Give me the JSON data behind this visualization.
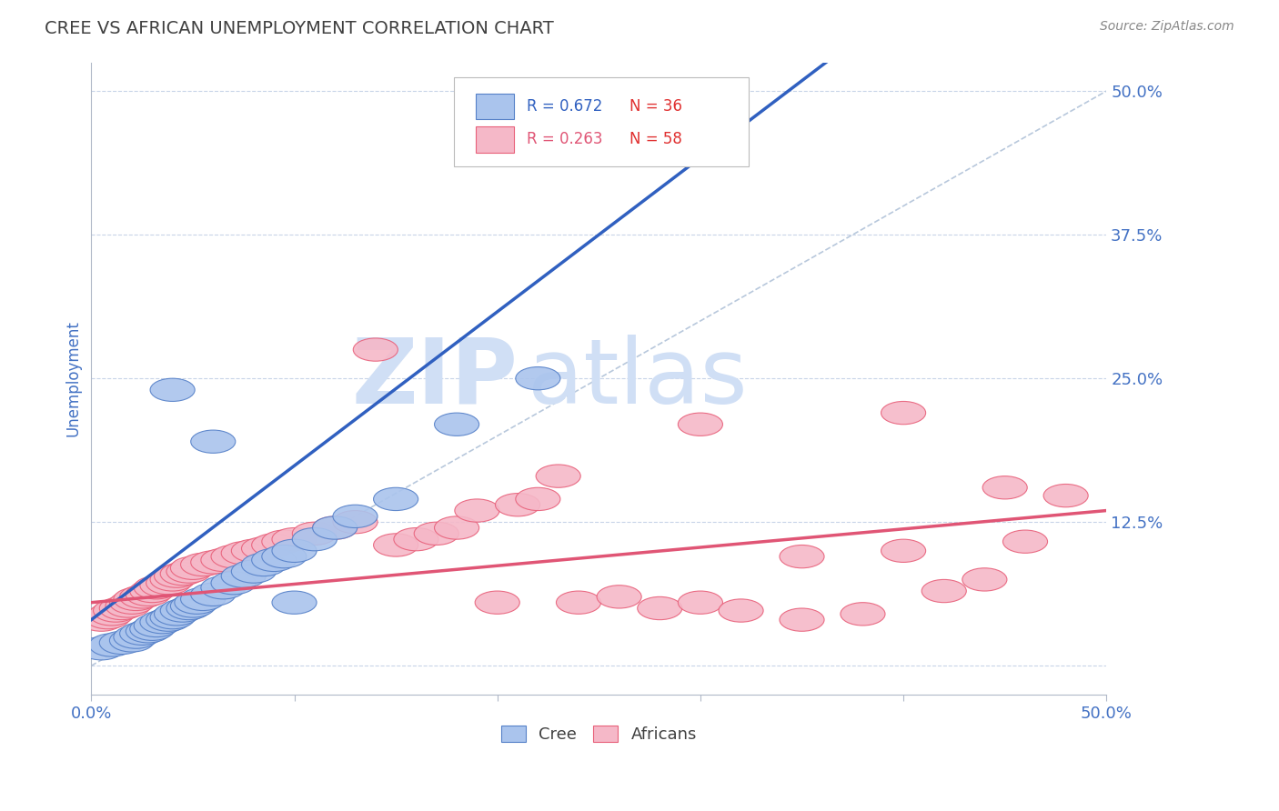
{
  "title": "CREE VS AFRICAN UNEMPLOYMENT CORRELATION CHART",
  "source_text": "Source: ZipAtlas.com",
  "ylabel_ticks": [
    0.0,
    0.125,
    0.25,
    0.375,
    0.5
  ],
  "ylabel_tick_labels": [
    "",
    "12.5%",
    "25.0%",
    "37.5%",
    "50.0%"
  ],
  "ylabel_label": "Unemployment",
  "xmin": 0.0,
  "xmax": 0.5,
  "ymin": -0.025,
  "ymax": 0.525,
  "cree_color": "#aac4ed",
  "african_color": "#f5b8c8",
  "cree_edge_color": "#5580c8",
  "african_edge_color": "#e8607a",
  "cree_line_color": "#3060c0",
  "african_line_color": "#e05575",
  "ref_line_color": "#b8c8dc",
  "legend_R_cree": "R = 0.672",
  "legend_N_cree": "N = 36",
  "legend_R_african": "R = 0.263",
  "legend_N_african": "N = 58",
  "watermark_zip": "ZIP",
  "watermark_atlas": "atlas",
  "watermark_color": "#d0dff5",
  "cree_x": [
    0.005,
    0.01,
    0.015,
    0.02,
    0.022,
    0.025,
    0.028,
    0.03,
    0.032,
    0.035,
    0.038,
    0.04,
    0.042,
    0.045,
    0.048,
    0.05,
    0.052,
    0.055,
    0.06,
    0.065,
    0.07,
    0.075,
    0.08,
    0.085,
    0.09,
    0.095,
    0.1,
    0.11,
    0.12,
    0.13,
    0.15,
    0.18,
    0.22,
    0.04,
    0.06,
    0.1
  ],
  "cree_y": [
    0.015,
    0.018,
    0.02,
    0.022,
    0.025,
    0.028,
    0.03,
    0.032,
    0.035,
    0.038,
    0.04,
    0.042,
    0.045,
    0.048,
    0.05,
    0.052,
    0.055,
    0.058,
    0.062,
    0.068,
    0.072,
    0.078,
    0.082,
    0.088,
    0.092,
    0.095,
    0.1,
    0.11,
    0.12,
    0.13,
    0.145,
    0.21,
    0.25,
    0.24,
    0.195,
    0.055
  ],
  "african_x": [
    0.005,
    0.008,
    0.01,
    0.012,
    0.015,
    0.018,
    0.02,
    0.022,
    0.025,
    0.028,
    0.03,
    0.032,
    0.035,
    0.038,
    0.04,
    0.042,
    0.045,
    0.048,
    0.05,
    0.055,
    0.06,
    0.065,
    0.07,
    0.075,
    0.08,
    0.085,
    0.09,
    0.095,
    0.1,
    0.11,
    0.12,
    0.13,
    0.14,
    0.15,
    0.16,
    0.17,
    0.18,
    0.19,
    0.2,
    0.21,
    0.22,
    0.23,
    0.24,
    0.26,
    0.28,
    0.3,
    0.32,
    0.35,
    0.38,
    0.4,
    0.42,
    0.44,
    0.46,
    0.48,
    0.3,
    0.35,
    0.4,
    0.45
  ],
  "african_y": [
    0.04,
    0.042,
    0.045,
    0.048,
    0.05,
    0.052,
    0.055,
    0.058,
    0.06,
    0.062,
    0.065,
    0.068,
    0.07,
    0.072,
    0.075,
    0.078,
    0.08,
    0.082,
    0.085,
    0.088,
    0.09,
    0.092,
    0.095,
    0.098,
    0.1,
    0.102,
    0.105,
    0.108,
    0.11,
    0.115,
    0.12,
    0.125,
    0.275,
    0.105,
    0.11,
    0.115,
    0.12,
    0.135,
    0.055,
    0.14,
    0.145,
    0.165,
    0.055,
    0.06,
    0.05,
    0.055,
    0.048,
    0.095,
    0.045,
    0.1,
    0.065,
    0.075,
    0.108,
    0.148,
    0.21,
    0.04,
    0.22,
    0.155
  ],
  "background_color": "#ffffff",
  "plot_bg_color": "#ffffff",
  "grid_color": "#c8d4e8",
  "title_color": "#404040",
  "source_color": "#888888",
  "tick_label_color": "#4472c4",
  "axis_label_color": "#4472c4"
}
